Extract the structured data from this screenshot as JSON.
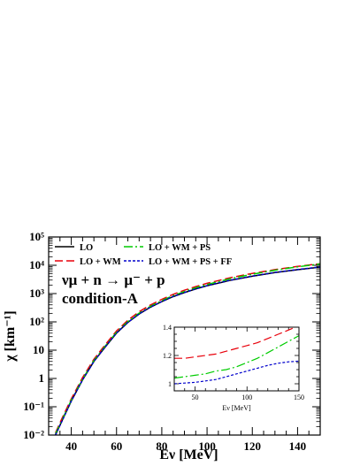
{
  "chart_data": [
    {
      "type": "line",
      "panel": "main",
      "xlabel": "Eν [MeV]",
      "ylabel": "χ [km⁻¹]",
      "xlim": [
        30,
        150
      ],
      "ylim": [
        0.01,
        100000
      ],
      "yscale": "log",
      "xticks": [
        40,
        60,
        80,
        100,
        120,
        140
      ],
      "xtick_labels": [
        "40",
        "60",
        "80",
        "100",
        "120",
        "140"
      ],
      "yticks": [
        0.01,
        0.1,
        1,
        10,
        100,
        1000,
        10000,
        100000
      ],
      "ytick_labels": [
        "10⁻²",
        "10⁻¹",
        "1",
        "10",
        "10²",
        "10³",
        "10⁴",
        "10⁵"
      ],
      "annotations": [
        "νμ + n → μ⁻ + p",
        "condition-A"
      ],
      "legend_position": "top-left",
      "x": [
        33,
        36,
        40,
        45,
        50,
        55,
        60,
        65,
        70,
        75,
        80,
        85,
        90,
        95,
        100,
        110,
        120,
        130,
        140,
        150
      ],
      "series": [
        {
          "name": "LO",
          "color": "#000000",
          "dash": "solid",
          "values": [
            0.01,
            0.033,
            0.16,
            0.9,
            4,
            13,
            40,
            95,
            190,
            330,
            520,
            780,
            1080,
            1450,
            1880,
            2900,
            4100,
            5500,
            7000,
            8600
          ]
        },
        {
          "name": "LO + WM",
          "color": "#e8000b",
          "dash": "long-dash",
          "values": [
            0.012,
            0.04,
            0.19,
            1.08,
            4.8,
            15.6,
            48,
            114,
            228,
            396,
            626,
            940,
            1310,
            1770,
            2310,
            3610,
            5170,
            7040,
            9100,
            11400
          ]
        },
        {
          "name": "LO + WM + PS",
          "color": "#00cc00",
          "dash": "dash-dot",
          "values": [
            0.011,
            0.035,
            0.17,
            0.95,
            4.3,
            14,
            43,
            102,
            204,
            355,
            562,
            847,
            1180,
            1605,
            2100,
            3320,
            4840,
            6660,
            8760,
            11100
          ]
        },
        {
          "name": "LO + WM + PS + FF",
          "color": "#0000cc",
          "dash": "short-dash",
          "values": [
            0.01,
            0.032,
            0.16,
            0.9,
            4,
            13.1,
            40.3,
            95.5,
            191,
            332,
            524,
            787,
            1092,
            1466,
            1906,
            2950,
            4170,
            5580,
            7100,
            8730
          ]
        }
      ]
    },
    {
      "type": "line",
      "panel": "inset",
      "xlabel": "Eν [MeV]",
      "ylabel": "",
      "xlim": [
        30,
        150
      ],
      "ylim": [
        0.95,
        1.4
      ],
      "xticks": [
        50,
        100,
        150
      ],
      "xtick_labels": [
        "50",
        "100",
        "150"
      ],
      "yticks": [
        1,
        1.2,
        1.4
      ],
      "ytick_labels": [
        "1",
        "1.2",
        "1.4"
      ],
      "x": [
        30,
        40,
        50,
        60,
        70,
        80,
        90,
        100,
        110,
        120,
        130,
        140,
        150
      ],
      "series": [
        {
          "name": "LO + WM",
          "color": "#e8000b",
          "dash": "long-dash",
          "values": [
            1.18,
            1.18,
            1.19,
            1.2,
            1.21,
            1.23,
            1.25,
            1.27,
            1.29,
            1.32,
            1.35,
            1.38,
            1.41
          ]
        },
        {
          "name": "LO + WM + PS",
          "color": "#00cc00",
          "dash": "dash-dot",
          "values": [
            1.04,
            1.05,
            1.06,
            1.07,
            1.09,
            1.1,
            1.12,
            1.15,
            1.18,
            1.22,
            1.26,
            1.3,
            1.34
          ]
        },
        {
          "name": "LO + WM + PS + FF",
          "color": "#0000cc",
          "dash": "short-dash",
          "values": [
            1,
            1.005,
            1.01,
            1.02,
            1.03,
            1.05,
            1.07,
            1.09,
            1.11,
            1.13,
            1.145,
            1.155,
            1.16
          ]
        }
      ]
    }
  ]
}
